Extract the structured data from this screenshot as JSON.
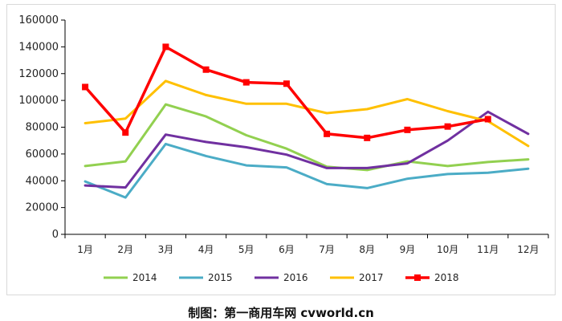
{
  "chart_data": {
    "type": "line",
    "title": "",
    "xlabel": "",
    "ylabel": "",
    "ylim": [
      0,
      160000
    ],
    "yticks": [
      0,
      20000,
      40000,
      60000,
      80000,
      100000,
      120000,
      140000,
      160000
    ],
    "ytick_labels": [
      "0",
      "20000",
      "40000",
      "60000",
      "80000",
      "100000",
      "120000",
      "140000",
      "160000"
    ],
    "categories": [
      "1月",
      "2月",
      "3月",
      "4月",
      "5月",
      "6月",
      "7月",
      "8月",
      "9月",
      "10月",
      "11月",
      "12月"
    ],
    "grid": false,
    "legend_position": "bottom",
    "series": [
      {
        "name": "2014",
        "color": "#92d050",
        "marker": false,
        "values": [
          51000,
          54500,
          97000,
          88000,
          74000,
          64000,
          50500,
          48000,
          54500,
          51000,
          54000,
          56000
        ]
      },
      {
        "name": "2015",
        "color": "#4bacc6",
        "marker": false,
        "values": [
          39500,
          27500,
          67500,
          58500,
          51500,
          50000,
          37500,
          34500,
          41500,
          45000,
          46000,
          49000
        ]
      },
      {
        "name": "2016",
        "color": "#7030a0",
        "marker": false,
        "values": [
          36500,
          35000,
          74500,
          69000,
          65000,
          59500,
          49500,
          49500,
          53000,
          70000,
          91500,
          75000
        ]
      },
      {
        "name": "2017",
        "color": "#ffc000",
        "marker": false,
        "values": [
          83000,
          86500,
          114500,
          104000,
          97500,
          97500,
          90500,
          93500,
          101000,
          92000,
          84500,
          66000
        ]
      },
      {
        "name": "2018",
        "color": "#ff0000",
        "marker": true,
        "values": [
          110000,
          76000,
          140000,
          123000,
          113500,
          112500,
          75000,
          72000,
          78000,
          80500,
          86000,
          null
        ]
      }
    ]
  },
  "caption": "制图：第一商用车网 cvworld.cn"
}
